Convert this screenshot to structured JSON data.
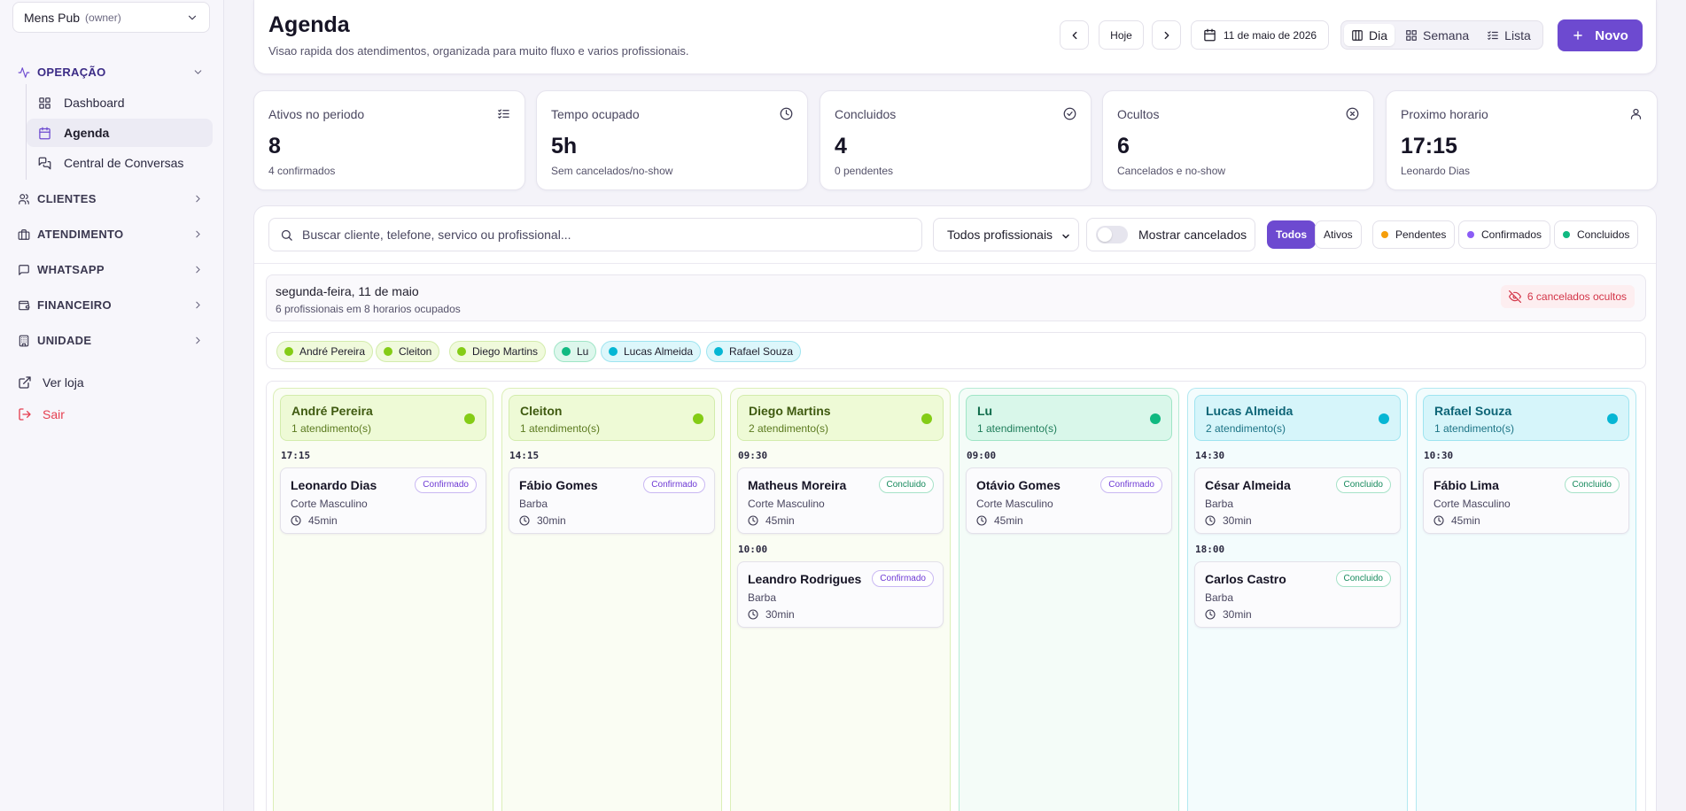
{
  "sidebar": {
    "org": {
      "name": "Mens Pub",
      "role": "(owner)"
    },
    "groups": [
      {
        "label": "OPERAÇÃO",
        "icon": "activity-icon"
      },
      {
        "label": "CLIENTES",
        "icon": "users-icon"
      },
      {
        "label": "ATENDIMENTO",
        "icon": "briefcase-icon"
      },
      {
        "label": "WHATSAPP",
        "icon": "message-icon"
      },
      {
        "label": "FINANCEIRO",
        "icon": "wallet-icon"
      },
      {
        "label": "UNIDADE",
        "icon": "building-icon"
      }
    ],
    "operacao_items": [
      {
        "label": "Dashboard",
        "icon": "dashboard-icon"
      },
      {
        "label": "Agenda",
        "icon": "calendar-icon"
      },
      {
        "label": "Central de Conversas",
        "icon": "chat-icon"
      }
    ],
    "footer": {
      "store": "Ver loja",
      "logout": "Sair"
    }
  },
  "header": {
    "title": "Agenda",
    "subtitle": "Visao rapida dos atendimentos, organizada para muito fluxo e varios profissionais.",
    "today": "Hoje",
    "date": "11 de maio de 2026",
    "views": [
      "Dia",
      "Semana",
      "Lista"
    ],
    "new_label": "Novo"
  },
  "stats": [
    {
      "label": "Ativos no periodo",
      "value": "8",
      "sub": "4 confirmados",
      "icon": "list-check-icon"
    },
    {
      "label": "Tempo ocupado",
      "value": "5h",
      "sub": "Sem cancelados/no-show",
      "icon": "clock-icon"
    },
    {
      "label": "Concluidos",
      "value": "4",
      "sub": "0 pendentes",
      "icon": "check-circle-icon"
    },
    {
      "label": "Ocultos",
      "value": "6",
      "sub": "Cancelados e no-show",
      "icon": "x-circle-icon"
    },
    {
      "label": "Proximo horario",
      "value": "17:15",
      "sub": "Leonardo Dias",
      "icon": "user-icon"
    }
  ],
  "filters": {
    "search_placeholder": "Buscar cliente, telefone, servico ou profissional...",
    "professional_select": "Todos profissionais",
    "show_cancelled": "Mostrar cancelados",
    "show_cancelled_on": false,
    "chips": [
      {
        "label": "Todos",
        "active": true,
        "dot": ""
      },
      {
        "label": "Ativos",
        "active": false,
        "dot": ""
      },
      {
        "label": "Pendentes",
        "active": false,
        "dot": "#f59e0b"
      },
      {
        "label": "Confirmados",
        "active": false,
        "dot": "#8b5cf6"
      },
      {
        "label": "Concluidos",
        "active": false,
        "dot": "#10b981"
      }
    ]
  },
  "day": {
    "title": "segunda-feira, 11 de maio",
    "sub": "6 profissionais em 8 horarios ocupados",
    "hidden_badge": "6 cancelados ocultos"
  },
  "professionals": [
    {
      "name": "André Pereira",
      "count": "1 atendimento(s)",
      "color": "#84cc16",
      "appointments": [
        {
          "time": "17:15",
          "client": "Leonardo Dias",
          "service": "Corte Masculino",
          "duration": "45min",
          "status": "Confirmado"
        }
      ]
    },
    {
      "name": "Cleiton",
      "count": "1 atendimento(s)",
      "color": "#84cc16",
      "appointments": [
        {
          "time": "14:15",
          "client": "Fábio Gomes",
          "service": "Barba",
          "duration": "30min",
          "status": "Confirmado"
        }
      ]
    },
    {
      "name": "Diego Martins",
      "count": "2 atendimento(s)",
      "color": "#84cc16",
      "appointments": [
        {
          "time": "09:30",
          "client": "Matheus Moreira",
          "service": "Corte Masculino",
          "duration": "45min",
          "status": "Concluido"
        },
        {
          "time": "10:00",
          "client": "Leandro Rodrigues",
          "service": "Barba",
          "duration": "30min",
          "status": "Confirmado"
        }
      ]
    },
    {
      "name": "Lu",
      "count": "1 atendimento(s)",
      "color": "#10b981",
      "appointments": [
        {
          "time": "09:00",
          "client": "Otávio Gomes",
          "service": "Corte Masculino",
          "duration": "45min",
          "status": "Confirmado"
        }
      ]
    },
    {
      "name": "Lucas Almeida",
      "count": "2 atendimento(s)",
      "color": "#06b6d4",
      "appointments": [
        {
          "time": "14:30",
          "client": "César Almeida",
          "service": "Barba",
          "duration": "30min",
          "status": "Concluido"
        },
        {
          "time": "18:00",
          "client": "Carlos Castro",
          "service": "Barba",
          "duration": "30min",
          "status": "Concluido"
        }
      ]
    },
    {
      "name": "Rafael Souza",
      "count": "1 atendimento(s)",
      "color": "#06b6d4",
      "appointments": [
        {
          "time": "10:30",
          "client": "Fábio Lima",
          "service": "Corte Masculino",
          "duration": "45min",
          "status": "Concluido"
        }
      ]
    }
  ]
}
